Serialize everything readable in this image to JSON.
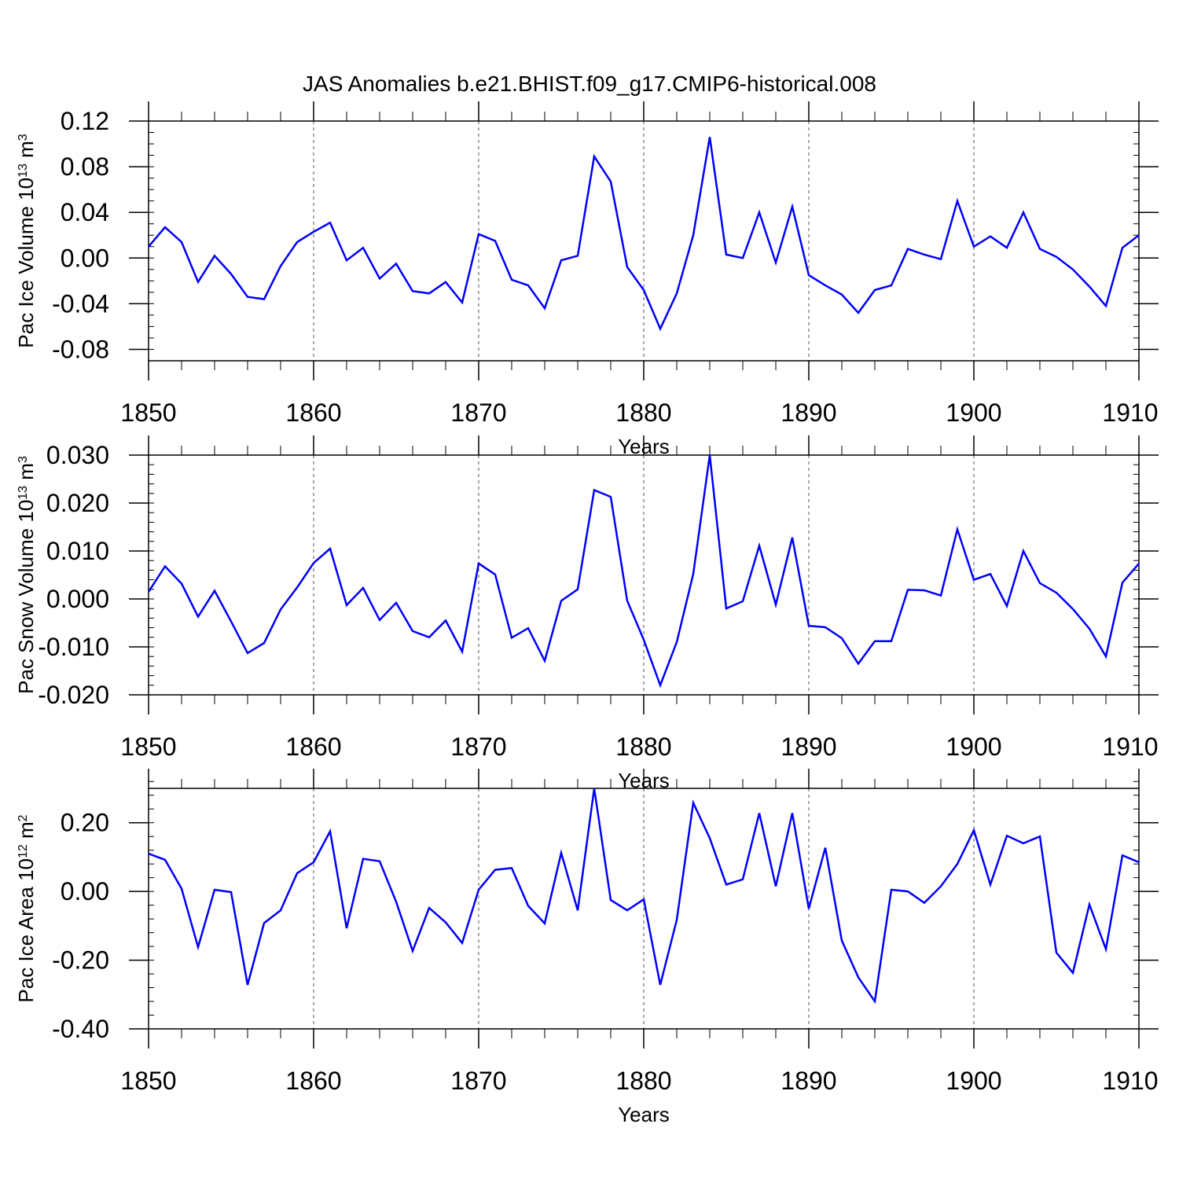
{
  "title": "JAS Anomalies b.e21.BHIST.f09_g17.CMIP6-historical.008",
  "colors": {
    "line": "#0000ff",
    "axis": "#000000",
    "grid": "#555555"
  },
  "chart_data": [
    {
      "type": "line",
      "ylabel": "Pac Ice Volume 10",
      "ylabel_exp": "13",
      "ylabel_unit": " m",
      "ylabel_unit_exp": "3",
      "xlabel": "Years",
      "xlim": [
        1850,
        1910
      ],
      "ylim": [
        -0.09,
        0.12
      ],
      "yticks": [
        -0.08,
        -0.04,
        0.0,
        0.04,
        0.08,
        0.12
      ],
      "yticklabels": [
        "-0.08",
        "-0.04",
        "0.00",
        "0.04",
        "0.08",
        "0.12"
      ],
      "yminor": 0.01,
      "xticks": [
        1850,
        1860,
        1870,
        1880,
        1890,
        1900,
        1910
      ],
      "xticklabels": [
        "1850",
        "1860",
        "1870",
        "1880",
        "1890",
        "1900",
        "1910"
      ],
      "vgrid": [
        1860,
        1870,
        1880,
        1890,
        1900
      ],
      "series": [
        {
          "x0": 1850,
          "values": [
            0.01,
            0.027,
            0.014,
            -0.021,
            0.002,
            -0.014,
            -0.034,
            -0.036,
            -0.007,
            0.014,
            0.023,
            0.031,
            -0.002,
            0.009,
            -0.018,
            -0.005,
            -0.029,
            -0.031,
            -0.021,
            -0.039,
            0.021,
            0.015,
            -0.019,
            -0.024,
            -0.044,
            -0.002,
            0.002,
            0.089,
            0.067,
            -0.008,
            -0.028,
            -0.062,
            -0.031,
            0.02,
            0.106,
            0.003,
            0.0,
            0.04,
            -0.004,
            0.045,
            -0.015,
            -0.024,
            -0.032,
            -0.048,
            -0.028,
            -0.024,
            0.008,
            0.003,
            -0.001,
            0.05,
            0.01,
            0.019,
            0.009,
            0.04,
            0.008,
            0.001,
            -0.01,
            -0.025,
            -0.042,
            0.009,
            0.02
          ]
        }
      ]
    },
    {
      "type": "line",
      "ylabel": "Pac Snow Volume 10",
      "ylabel_exp": "13",
      "ylabel_unit": " m",
      "ylabel_unit_exp": "3",
      "xlabel": "Years",
      "xlim": [
        1850,
        1910
      ],
      "ylim": [
        -0.02,
        0.03
      ],
      "yticks": [
        -0.02,
        -0.01,
        0.0,
        0.01,
        0.02,
        0.03
      ],
      "yticklabels": [
        "-0.020",
        "-0.010",
        "0.000",
        "0.010",
        "0.020",
        "0.030"
      ],
      "yminor": 0.002,
      "xticks": [
        1850,
        1860,
        1870,
        1880,
        1890,
        1900,
        1910
      ],
      "xticklabels": [
        "1850",
        "1860",
        "1870",
        "1880",
        "1890",
        "1900",
        "1910"
      ],
      "vgrid": [
        1860,
        1870,
        1880,
        1890,
        1900
      ],
      "series": [
        {
          "x0": 1850,
          "values": [
            0.0015,
            0.0068,
            0.0032,
            -0.0037,
            0.0017,
            -0.0047,
            -0.0113,
            -0.0092,
            -0.0022,
            0.0024,
            0.0075,
            0.0105,
            -0.0013,
            0.0023,
            -0.0044,
            -0.0008,
            -0.0067,
            -0.008,
            -0.0045,
            -0.011,
            0.0074,
            0.0051,
            -0.0081,
            -0.0061,
            -0.0129,
            -0.0004,
            0.002,
            0.0227,
            0.0213,
            -0.0004,
            -0.0085,
            -0.018,
            -0.009,
            0.0052,
            0.03,
            -0.002,
            -0.0005,
            0.0111,
            -0.0012,
            0.0128,
            -0.0056,
            -0.0059,
            -0.0082,
            -0.0135,
            -0.0088,
            -0.0088,
            0.0019,
            0.0018,
            0.0007,
            0.0145,
            0.004,
            0.0052,
            -0.0015,
            0.01,
            0.0033,
            0.0013,
            -0.0021,
            -0.0062,
            -0.012,
            0.0034,
            0.0074
          ]
        }
      ]
    },
    {
      "type": "line",
      "ylabel": "Pac Ice Area 10",
      "ylabel_exp": "12",
      "ylabel_unit": " m",
      "ylabel_unit_exp": "2",
      "xlabel": "Years",
      "xlim": [
        1850,
        1910
      ],
      "ylim": [
        -0.4,
        0.3
      ],
      "yticks": [
        -0.4,
        -0.2,
        0.0,
        0.2
      ],
      "yticklabels": [
        "-0.40",
        "-0.20",
        "0.00",
        "0.20"
      ],
      "yminor": 0.04,
      "xticks": [
        1850,
        1860,
        1870,
        1880,
        1890,
        1900,
        1910
      ],
      "xticklabels": [
        "1850",
        "1860",
        "1870",
        "1880",
        "1890",
        "1900",
        "1910"
      ],
      "vgrid": [
        1860,
        1870,
        1880,
        1890,
        1900
      ],
      "series": [
        {
          "x0": 1850,
          "values": [
            0.11,
            0.092,
            0.008,
            -0.162,
            0.005,
            -0.002,
            -0.272,
            -0.092,
            -0.055,
            0.053,
            0.085,
            0.175,
            -0.107,
            0.095,
            0.088,
            -0.03,
            -0.173,
            -0.048,
            -0.09,
            -0.15,
            0.005,
            0.063,
            0.068,
            -0.042,
            -0.093,
            0.112,
            -0.055,
            0.3,
            -0.025,
            -0.055,
            -0.023,
            -0.272,
            -0.083,
            0.258,
            0.155,
            0.02,
            0.035,
            0.228,
            0.015,
            0.228,
            -0.05,
            0.127,
            -0.143,
            -0.25,
            -0.32,
            0.005,
            0.0,
            -0.033,
            0.015,
            0.08,
            0.178,
            0.02,
            0.162,
            0.14,
            0.16,
            -0.178,
            -0.237,
            -0.038,
            -0.168,
            0.105,
            0.085
          ]
        }
      ]
    }
  ]
}
